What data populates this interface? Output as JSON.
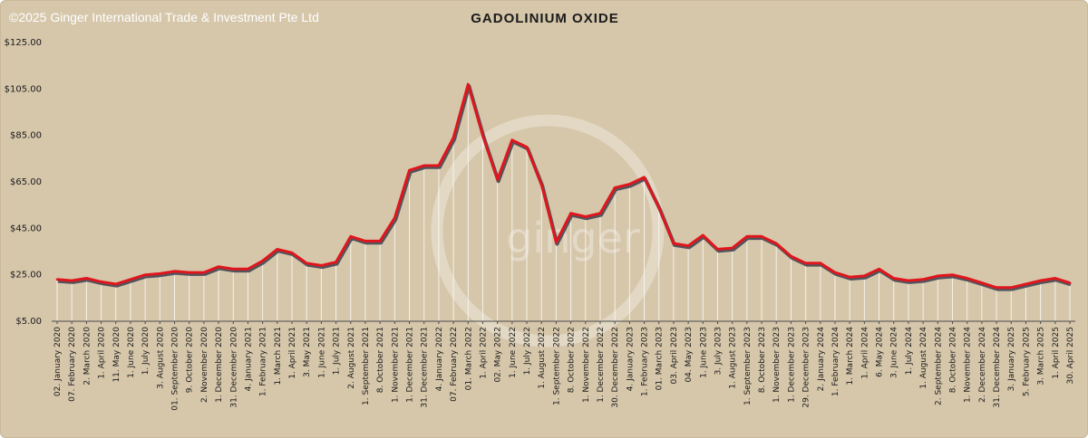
{
  "header": {
    "copyright": "©2025 Ginger International Trade & Investment Pte Ltd",
    "watermark": "ginger"
  },
  "chart_data": {
    "type": "line",
    "title": "GADOLINIUM OXIDE",
    "xlabel": "",
    "ylabel": "",
    "ylim": [
      5,
      125
    ],
    "y_ticks": [
      "$5.00",
      "$25.00",
      "$45.00",
      "$65.00",
      "$85.00",
      "$105.00",
      "$125.00"
    ],
    "y_tick_values": [
      5,
      25,
      45,
      65,
      85,
      105,
      125
    ],
    "grid": false,
    "line_color": "#e0161c",
    "drop_lines": true,
    "categories": [
      "02. January 2020",
      "07. February 2020",
      "2. March 2020",
      "1. April 2020",
      "11. May 2020",
      "1. June 2020",
      "1. July 2020",
      "3. August 2020",
      "01. September 2020",
      "9. October 2020",
      "2. November 2020",
      "1. December 2020",
      "31. December 2020",
      "4. January 2021",
      "1. February 2021",
      "1. March 2021",
      "1. April 2021",
      "3. May 2021",
      "1. June 2021",
      "1. July 2021",
      "2. August 2021",
      "1. September 2021",
      "8. October 2021",
      "1. November 2021",
      "1. December 2021",
      "31. December 2021",
      "4. January 2022",
      "07. February 2022",
      "01. March 2022",
      "1. April 2022",
      "02. May 2022",
      "1. June 2022",
      "1. July 2022",
      "1. August 2022",
      "1. September 2022",
      "8. October 2022",
      "1. November 2022",
      "1. December 2022",
      "30. December 2022",
      "4. January 2023",
      "1. February 2023",
      "01. March 2023",
      "03. April 2023",
      "04. May 2023",
      "1. June 2023",
      "3. July 2023",
      "1. August 2023",
      "1. September 2023",
      "8. October 2023",
      "1. November 2023",
      "1. December 2023",
      "29. December 2023",
      "2. January 2024",
      "1. February 2024",
      "1. March 2024",
      "1. April 2024",
      "6. May 2024",
      "3. June 2024",
      "1. July 2024",
      "1. August 2024",
      "2. September 2024",
      "8. October 2024",
      "1. November 2024",
      "2. December 2024",
      "31. December 2024",
      "3. January 2025",
      "5. February 2025",
      "3. March 2025",
      "1. April 2025",
      "30. April 2025"
    ],
    "series": [
      {
        "values": [
          23,
          22.5,
          23.5,
          22,
          21,
          23,
          25,
          25.5,
          26.5,
          26,
          26,
          28.5,
          27.5,
          27.5,
          31,
          36,
          34.5,
          30,
          29,
          30.5,
          41.5,
          39.5,
          39.5,
          49.5,
          70,
          72,
          72,
          84,
          107,
          85,
          66,
          83,
          80,
          64,
          39,
          51.5,
          50,
          51.5,
          62.5,
          64,
          67,
          54,
          38.5,
          37.5,
          42,
          36,
          36.5,
          41.5,
          41.5,
          38.5,
          33,
          30,
          30,
          26,
          24,
          24.5,
          27.5,
          23.5,
          22.5,
          23,
          24.5,
          25,
          23.5,
          21.5,
          19.5,
          19.5,
          21,
          22.5,
          23.5,
          21.5
        ]
      }
    ]
  }
}
